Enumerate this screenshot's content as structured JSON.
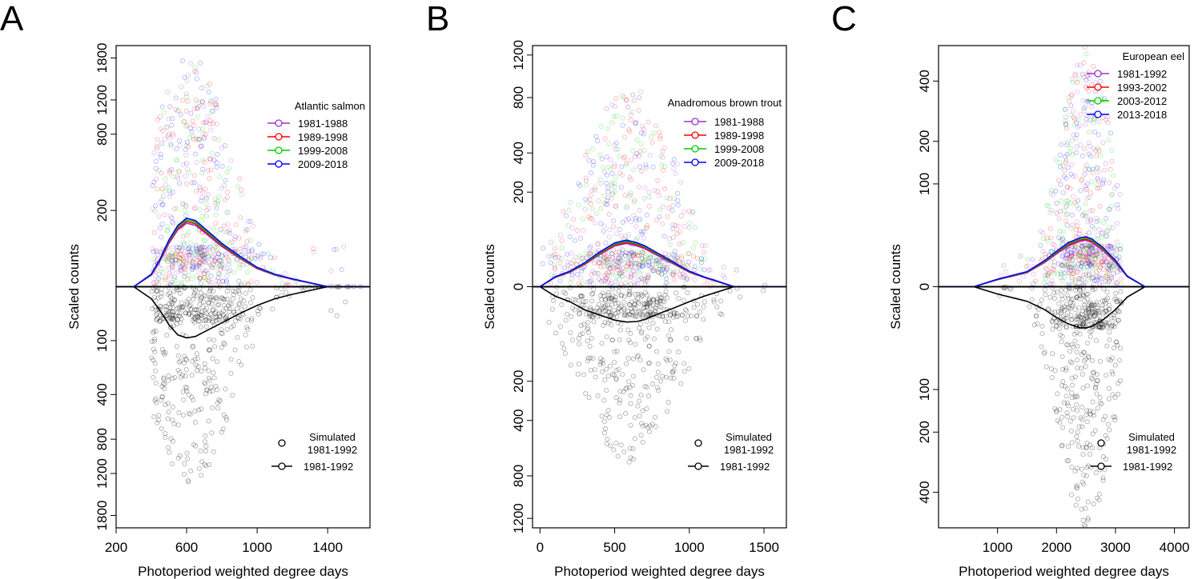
{
  "figure": {
    "xlabel": "Photoperiod weighted degree days",
    "ylabel": "Scaled counts"
  },
  "chart_data": [
    {
      "panel": "A",
      "type": "scatter",
      "title": "Atlantic salmon",
      "scale": "sqrt",
      "xlim": [
        200,
        1640
      ],
      "ylim": [
        -2000,
        2000
      ],
      "xticks": [
        200,
        600,
        1000,
        1400
      ],
      "yticks_top": [
        200,
        800,
        1200,
        1800
      ],
      "yticks_bottom": [
        100,
        400,
        800,
        1200,
        1800
      ],
      "legend_top": [
        {
          "name": "1981-1988",
          "color": "#9933cc"
        },
        {
          "name": "1989-1998",
          "color": "#ff0000"
        },
        {
          "name": "1999-2008",
          "color": "#00cc00"
        },
        {
          "name": "2009-2018",
          "color": "#0000ff"
        }
      ],
      "legend_bottom": {
        "points_label": [
          "Simulated",
          "1981-1992"
        ],
        "line_label": "1981-1992",
        "color": "#000000"
      },
      "curve_top": {
        "x": [
          200,
          300,
          400,
          450,
          500,
          550,
          600,
          650,
          700,
          800,
          900,
          1000,
          1100,
          1200,
          1400,
          1640
        ],
        "y": [
          0,
          0,
          5,
          25,
          70,
          120,
          150,
          140,
          110,
          60,
          30,
          12,
          5,
          2,
          0,
          0
        ]
      },
      "curve_bottom": {
        "x": [
          200,
          300,
          400,
          450,
          500,
          550,
          600,
          650,
          700,
          800,
          900,
          1000,
          1100,
          1200,
          1400,
          1640
        ],
        "y": [
          0,
          0,
          5,
          20,
          50,
          80,
          90,
          85,
          70,
          45,
          25,
          12,
          5,
          2,
          0,
          0
        ]
      },
      "points_top_range": {
        "x": [
          400,
          1600
        ],
        "center": 620,
        "spread": 180,
        "y": [
          0,
          1850
        ]
      },
      "points_bottom_range": {
        "x": [
          400,
          1600
        ],
        "center": 620,
        "spread": 180,
        "y": [
          0,
          1350
        ]
      }
    },
    {
      "panel": "B",
      "type": "scatter",
      "title": "Anadromous brown trout",
      "scale": "sqrt",
      "xlim": [
        -50,
        1650
      ],
      "ylim": [
        -1300,
        1300
      ],
      "xticks": [
        0,
        500,
        1000,
        1500
      ],
      "yticks_top": [
        0,
        200,
        400,
        800,
        1200
      ],
      "yticks_bottom": [
        200,
        400,
        800,
        1200
      ],
      "legend_top": [
        {
          "name": "1981-1988",
          "color": "#9933cc"
        },
        {
          "name": "1989-1998",
          "color": "#ff0000"
        },
        {
          "name": "1999-2008",
          "color": "#00cc00"
        },
        {
          "name": "2009-2018",
          "color": "#0000ff"
        }
      ],
      "legend_bottom": {
        "points_label": [
          "Simulated",
          "1981-1992"
        ],
        "line_label": "1981-1992",
        "color": "#000000"
      },
      "curve_top": {
        "x": [
          -50,
          0,
          100,
          200,
          300,
          400,
          500,
          580,
          650,
          700,
          800,
          900,
          1000,
          1100,
          1300,
          1650
        ],
        "y": [
          0,
          0,
          2,
          5,
          12,
          25,
          40,
          45,
          40,
          35,
          22,
          12,
          5,
          2,
          0,
          0
        ]
      },
      "curve_bottom": {
        "x": [
          -50,
          0,
          100,
          200,
          300,
          400,
          500,
          580,
          650,
          700,
          800,
          900,
          1000,
          1100,
          1300,
          1650
        ],
        "y": [
          0,
          0,
          2,
          5,
          12,
          18,
          25,
          28,
          27,
          24,
          16,
          10,
          5,
          2,
          0,
          0
        ]
      },
      "points_top_range": {
        "x": [
          0,
          1600
        ],
        "center": 600,
        "spread": 250,
        "y": [
          0,
          900
        ]
      },
      "points_bottom_range": {
        "x": [
          0,
          1600
        ],
        "center": 600,
        "spread": 250,
        "y": [
          0,
          700
        ]
      }
    },
    {
      "panel": "C",
      "type": "scatter",
      "title": "European eel",
      "scale": "sqrt",
      "xlim": [
        0,
        4250
      ],
      "ylim": [
        -550,
        550
      ],
      "xticks": [
        1000,
        2000,
        3000,
        4000
      ],
      "yticks_top": [
        0,
        100,
        200,
        400
      ],
      "yticks_bottom": [
        100,
        200,
        400
      ],
      "legend_top": [
        {
          "name": "1981-1992",
          "color": "#9933cc"
        },
        {
          "name": "1993-2002",
          "color": "#ff0000"
        },
        {
          "name": "2003-2012",
          "color": "#00cc00"
        },
        {
          "name": "2013-2018",
          "color": "#0000ff"
        }
      ],
      "legend_bottom": {
        "points_label": [
          "Simulated",
          "1981-1992"
        ],
        "line_label": "1981-1992",
        "color": "#000000"
      },
      "curve_top": {
        "x": [
          0,
          600,
          1000,
          1500,
          1800,
          2000,
          2200,
          2400,
          2500,
          2600,
          2800,
          3000,
          3200,
          3500,
          4250
        ],
        "y": [
          0,
          0,
          0.5,
          2,
          6,
          11,
          17,
          21,
          22,
          20,
          13,
          6,
          1,
          0,
          0
        ]
      },
      "curve_bottom": {
        "x": [
          0,
          600,
          1000,
          1500,
          1800,
          2000,
          2200,
          2400,
          2500,
          2600,
          2800,
          3000,
          3200,
          3500,
          4250
        ],
        "y": [
          0,
          0,
          0.5,
          2,
          5,
          9,
          13,
          16,
          16,
          15,
          10,
          5,
          1,
          0,
          0
        ]
      },
      "points_top_range": {
        "x": [
          1000,
          3100
        ],
        "center": 2500,
        "spread": 350,
        "y": [
          0,
          550
        ]
      },
      "points_bottom_range": {
        "x": [
          1000,
          3100
        ],
        "center": 2500,
        "spread": 350,
        "y": [
          0,
          550
        ]
      }
    }
  ],
  "panels": [
    {
      "letter": "A"
    },
    {
      "letter": "B"
    },
    {
      "letter": "C"
    }
  ]
}
